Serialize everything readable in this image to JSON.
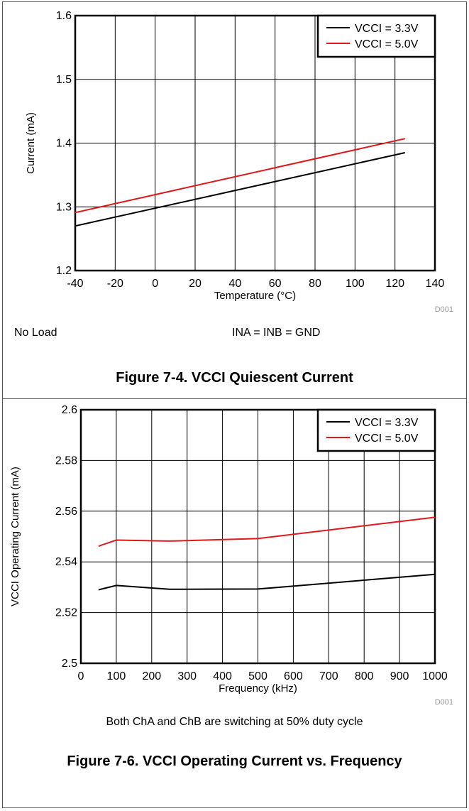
{
  "charts": {
    "chart1": {
      "y_ticks": [
        "1.2",
        "1.3",
        "1.4",
        "1.5",
        "1.6"
      ],
      "x_ticks": [
        "-40",
        "-20",
        "0",
        "20",
        "40",
        "60",
        "80",
        "100",
        "120",
        "140"
      ],
      "code": "D001"
    },
    "chart2": {
      "y_ticks": [
        "2.5",
        "2.52",
        "2.54",
        "2.56",
        "2.58",
        "2.6"
      ],
      "x_ticks": [
        "0",
        "100",
        "200",
        "300",
        "400",
        "500",
        "600",
        "700",
        "800",
        "900",
        "1000"
      ],
      "code": "D001"
    }
  },
  "section1": {
    "condition_left": "No Load",
    "condition_right": "INA = INB = GND",
    "caption": "Figure 7-4. VCCI Quiescent Current"
  },
  "section2": {
    "condition": "Both ChA and ChB are switching at 50% duty cycle",
    "caption": "Figure 7-6. VCCI Operating Current vs. Frequency"
  },
  "chart_data": [
    {
      "type": "line",
      "title": "",
      "xlabel": "Temperature (°C)",
      "ylabel": "Current (mA)",
      "xlim": [
        -40,
        140
      ],
      "ylim": [
        1.2,
        1.6
      ],
      "grid": true,
      "legend_position": "top-right",
      "series": [
        {
          "name": "VCCI = 3.3V",
          "color": "#000000",
          "x": [
            -40,
            125
          ],
          "y": [
            1.27,
            1.385
          ]
        },
        {
          "name": "VCCI = 5.0V",
          "color": "#e0181b",
          "x": [
            -40,
            125
          ],
          "y": [
            1.291,
            1.407
          ]
        }
      ]
    },
    {
      "type": "line",
      "title": "",
      "xlabel": "Frequency (kHz)",
      "ylabel": "VCCI Operating Current (mA)",
      "xlim": [
        0,
        1000
      ],
      "ylim": [
        2.5,
        2.6
      ],
      "grid": true,
      "legend_position": "top-right",
      "series": [
        {
          "name": "VCCI = 3.3V",
          "color": "#000000",
          "x": [
            50,
            100,
            250,
            500,
            1000
          ],
          "y": [
            2.529,
            2.5307,
            2.5292,
            2.5293,
            2.5351
          ]
        },
        {
          "name": "VCCI = 5.0V",
          "color": "#e0181b",
          "x": [
            50,
            100,
            250,
            500,
            1000
          ],
          "y": [
            2.5462,
            2.5486,
            2.5482,
            2.5492,
            2.5576
          ]
        }
      ]
    }
  ]
}
